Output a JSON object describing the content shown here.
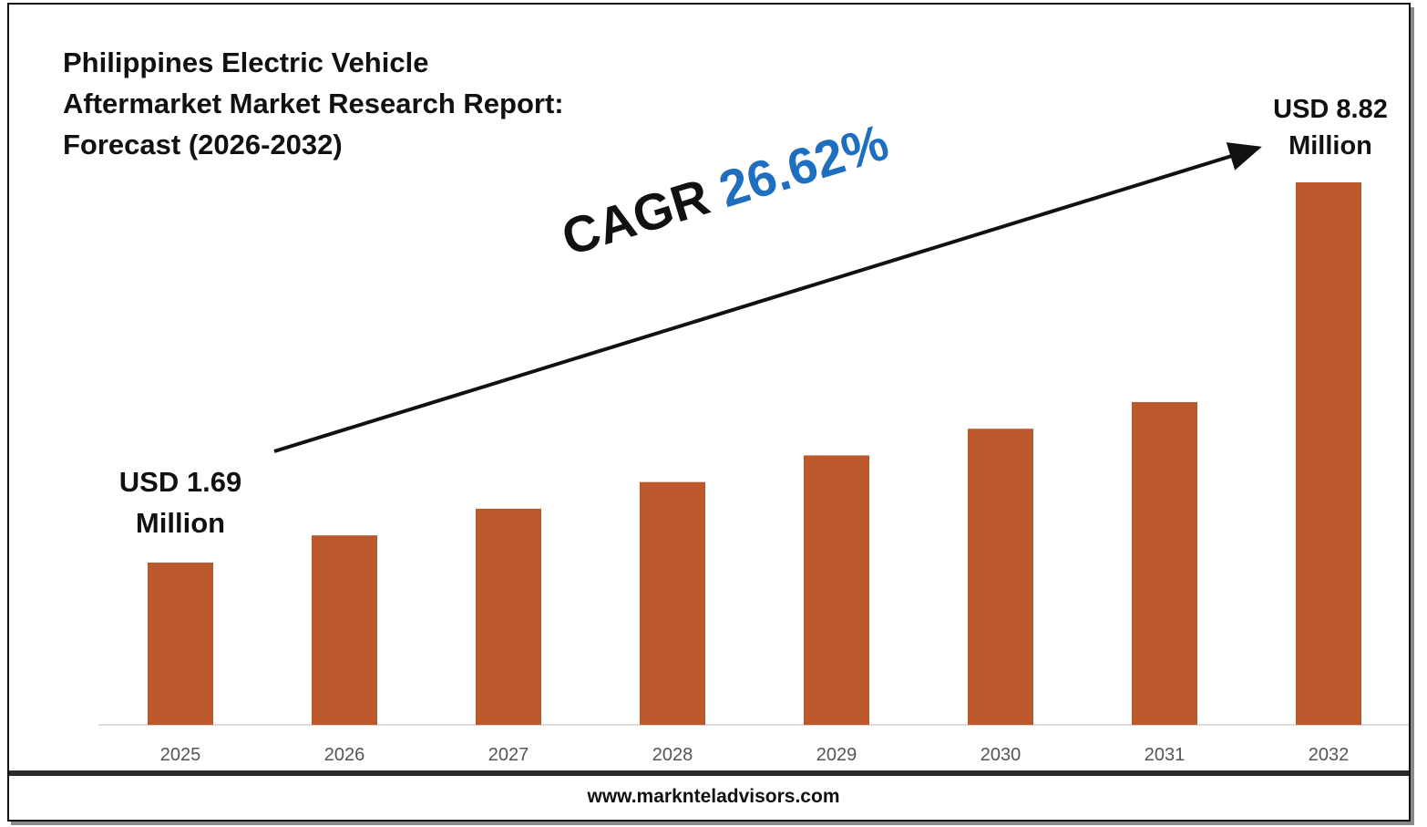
{
  "chart_data": {
    "type": "bar",
    "title": [
      "Philippines Electric Vehicle",
      "Aftermarket Market Research Report:",
      "Forecast (2026-2032)"
    ],
    "categories": [
      "2025",
      "2026",
      "2027",
      "2028",
      "2029",
      "2030",
      "2031",
      "2032"
    ],
    "values": [
      1.69,
      2.2,
      2.7,
      3.2,
      3.7,
      4.2,
      4.7,
      8.82
    ],
    "bar_color": "#bb582c",
    "start_label": [
      "USD 1.69",
      "Million"
    ],
    "end_label": [
      "USD 8.82",
      "Million"
    ],
    "cagr_prefix": "CAGR",
    "cagr_value": "26.62%",
    "cagr_color": "#1f6fc0"
  },
  "footer": {
    "url": "www.marknteladvisors.com"
  }
}
